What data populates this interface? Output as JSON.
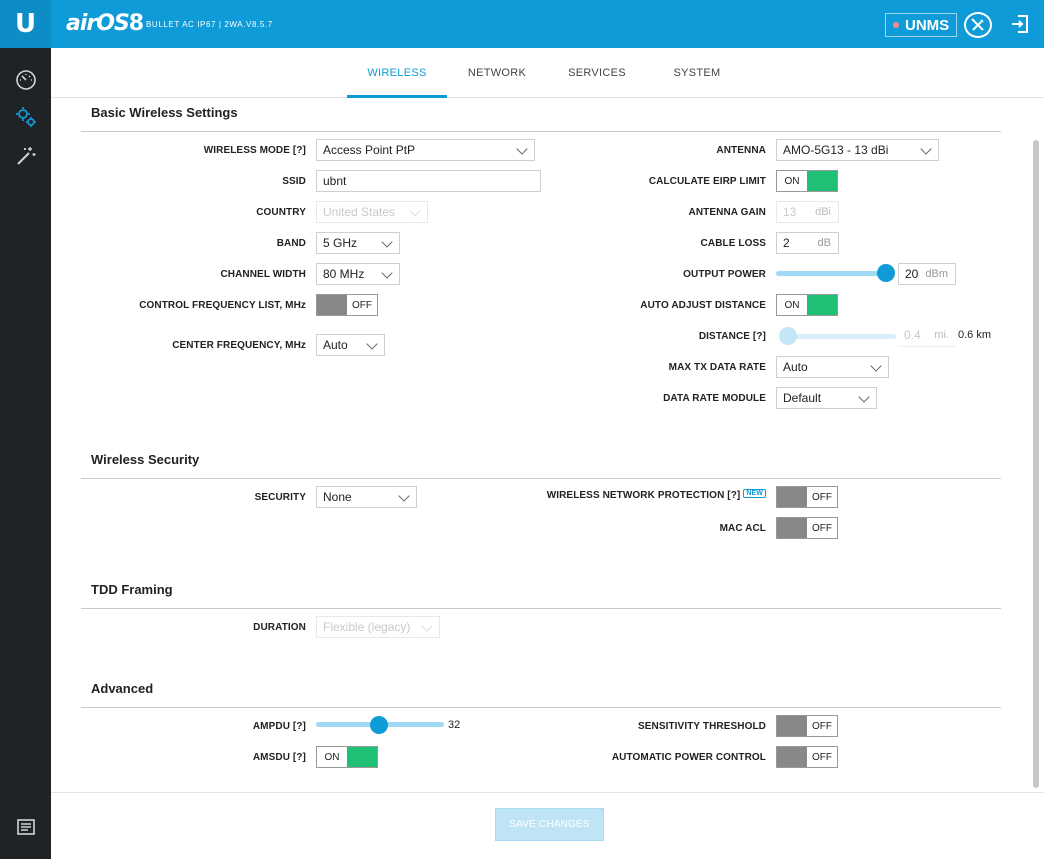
{
  "header": {
    "logo": "U",
    "product": "airOS 8",
    "device": "BULLET AC IP67 | 2WA.V8.5.7",
    "unms": "UNMS",
    "icons": [
      "tools-icon",
      "logout-icon"
    ]
  },
  "sidebar": {
    "items": [
      "dashboard-icon",
      "settings-gears-icon",
      "tools-wand-icon",
      "log-icon"
    ]
  },
  "tabs": [
    "WIRELESS",
    "NETWORK",
    "SERVICES",
    "SYSTEM"
  ],
  "active_tab": "WIRELESS",
  "colors": {
    "accent": "#0f9bd7",
    "on": "#1fc075",
    "sidebar": "#1f2326"
  },
  "basic": {
    "title": "Basic Wireless Settings",
    "wireless_mode": {
      "label": "WIRELESS MODE",
      "help": "[?]",
      "value": "Access Point PtP"
    },
    "ssid": {
      "label": "SSID",
      "value": "ubnt"
    },
    "country": {
      "label": "COUNTRY",
      "value": "United States"
    },
    "band": {
      "label": "BAND",
      "value": "5 GHz"
    },
    "channel_width": {
      "label": "CHANNEL WIDTH",
      "value": "80 MHz"
    },
    "control_freq": {
      "label": "CONTROL FREQUENCY LIST, MHz",
      "state": "OFF"
    },
    "center_freq": {
      "label": "CENTER FREQUENCY, MHz",
      "value": "Auto"
    },
    "antenna": {
      "label": "ANTENNA",
      "value": "AMO-5G13 - 13 dBi"
    },
    "calc_eirp": {
      "label": "CALCULATE EIRP LIMIT",
      "state": "ON"
    },
    "antenna_gain": {
      "label": "ANTENNA GAIN",
      "value": "13",
      "unit": "dBi"
    },
    "cable_loss": {
      "label": "CABLE LOSS",
      "value": "2",
      "unit": "dB"
    },
    "output_power": {
      "label": "OUTPUT POWER",
      "value": "20",
      "unit": "dBm",
      "level": 1.0
    },
    "auto_adjust": {
      "label": "AUTO ADJUST DISTANCE",
      "state": "ON"
    },
    "distance": {
      "label": "DISTANCE",
      "help": "[?]",
      "value": "0.4",
      "unit": "mi.",
      "km": "0.6 km",
      "level": 0.0
    },
    "max_tx": {
      "label": "MAX TX DATA RATE",
      "value": "Auto"
    },
    "data_rate_module": {
      "label": "DATA RATE MODULE",
      "value": "Default"
    }
  },
  "security": {
    "title": "Wireless Security",
    "security": {
      "label": "SECURITY",
      "value": "None"
    },
    "wnp": {
      "label": "WIRELESS NETWORK PROTECTION",
      "help": "[?]",
      "badge": "NEW",
      "state": "OFF"
    },
    "mac_acl": {
      "label": "MAC ACL",
      "state": "OFF"
    }
  },
  "tdd": {
    "title": "TDD Framing",
    "duration": {
      "label": "DURATION",
      "value": "Flexible (legacy)"
    }
  },
  "advanced": {
    "title": "Advanced",
    "ampdu": {
      "label": "AMPDU",
      "help": "[?]",
      "value": "32",
      "level": 0.5
    },
    "amsdu": {
      "label": "AMSDU",
      "help": "[?]",
      "state": "ON"
    },
    "sensitivity": {
      "label": "SENSITIVITY THRESHOLD",
      "state": "OFF"
    },
    "apc": {
      "label": "AUTOMATIC POWER CONTROL",
      "state": "OFF"
    }
  },
  "footer": {
    "save": "SAVE CHANGES"
  }
}
